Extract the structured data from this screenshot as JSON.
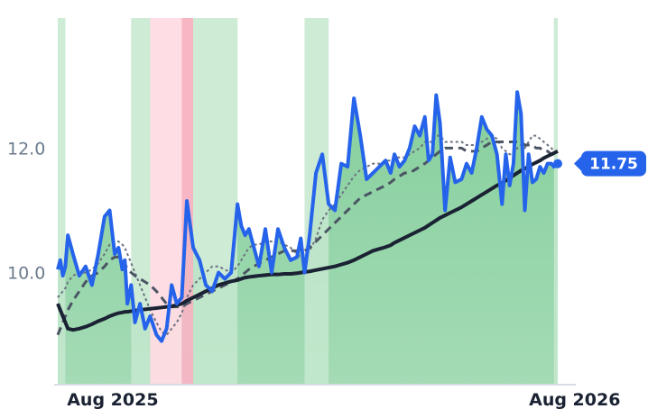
{
  "colors": {
    "price": "#2563eb",
    "ma_long": "#1a2233",
    "ma_mid": "#4b5563",
    "ma_short": "#6b7280",
    "area_up": "#86cf9d",
    "band_up": "#cdebd6",
    "band_down": "#ffdce4",
    "band_down_strong": "#f7b6c4",
    "label_bg": "#2563eb"
  },
  "chart_data": {
    "type": "line",
    "title": "",
    "xlabel": "",
    "ylabel": "",
    "x_range": [
      "2025-07-24",
      "2026-09-02"
    ],
    "ylim": [
      8.2,
      13.8
    ],
    "grid": false,
    "legend": "none",
    "x_ticks": [
      {
        "date": "2025-08-01",
        "label": "Aug 2025"
      },
      {
        "date": "2026-08-01",
        "label": "Aug 2026"
      }
    ],
    "y_ticks": [
      {
        "value": 10.0,
        "label": "10.0"
      },
      {
        "value": 12.0,
        "label": "12.0"
      }
    ],
    "last_value_label": "11.75",
    "x": [
      "2025-07-24",
      "2025-07-26",
      "2025-07-28",
      "2025-07-30",
      "2025-08-01",
      "2025-08-05",
      "2025-08-10",
      "2025-08-15",
      "2025-08-20",
      "2025-08-25",
      "2025-08-30",
      "2025-09-03",
      "2025-09-07",
      "2025-09-10",
      "2025-09-13",
      "2025-09-15",
      "2025-09-17",
      "2025-09-20",
      "2025-09-23",
      "2025-09-27",
      "2025-10-01",
      "2025-10-05",
      "2025-10-10",
      "2025-10-14",
      "2025-10-18",
      "2025-10-22",
      "2025-10-26",
      "2025-10-30",
      "2025-11-03",
      "2025-11-08",
      "2025-11-13",
      "2025-11-18",
      "2025-11-23",
      "2025-11-28",
      "2025-12-03",
      "2025-12-08",
      "2025-12-13",
      "2025-12-16",
      "2025-12-19",
      "2025-12-22",
      "2025-12-26",
      "2025-12-30",
      "2026-01-04",
      "2026-01-09",
      "2026-01-14",
      "2026-01-19",
      "2026-01-24",
      "2026-01-29",
      "2026-02-01",
      "2026-02-04",
      "2026-02-08",
      "2026-02-13",
      "2026-02-18",
      "2026-02-23",
      "2026-02-28",
      "2026-03-05",
      "2026-03-10",
      "2026-03-15",
      "2026-03-20",
      "2026-03-25",
      "2026-03-30",
      "2026-04-04",
      "2026-04-09",
      "2026-04-13",
      "2026-04-16",
      "2026-04-20",
      "2026-04-24",
      "2026-04-28",
      "2026-05-02",
      "2026-05-06",
      "2026-05-10",
      "2026-05-13",
      "2026-05-16",
      "2026-05-19",
      "2026-05-22",
      "2026-05-26",
      "2026-05-30",
      "2026-06-03",
      "2026-06-08",
      "2026-06-12",
      "2026-06-16",
      "2026-06-20",
      "2026-06-24",
      "2026-06-28",
      "2026-07-02",
      "2026-07-06",
      "2026-07-10",
      "2026-07-13",
      "2026-07-16",
      "2026-07-19",
      "2026-07-22",
      "2026-07-25",
      "2026-07-28",
      "2026-07-31",
      "2026-08-03",
      "2026-08-06",
      "2026-08-09",
      "2026-08-12",
      "2026-08-15",
      "2026-08-18",
      "2026-08-20",
      "2026-08-23"
    ],
    "series": [
      {
        "key": "price",
        "values": [
          10.05,
          10.2,
          9.95,
          10.1,
          10.6,
          10.3,
          9.95,
          10.1,
          9.8,
          10.3,
          10.9,
          11.0,
          10.3,
          10.4,
          10.05,
          10.2,
          9.5,
          9.8,
          9.2,
          9.5,
          9.1,
          9.3,
          9.0,
          8.9,
          9.1,
          9.8,
          9.5,
          9.6,
          11.15,
          10.4,
          10.2,
          9.8,
          9.7,
          10.0,
          9.9,
          10.0,
          11.1,
          10.75,
          10.6,
          10.7,
          10.4,
          10.1,
          10.7,
          10.0,
          10.7,
          10.4,
          10.2,
          10.25,
          10.55,
          10.0,
          10.6,
          11.6,
          11.9,
          11.1,
          11.0,
          11.75,
          11.7,
          12.8,
          12.2,
          11.5,
          11.6,
          11.7,
          11.8,
          11.6,
          11.9,
          11.7,
          11.8,
          12.0,
          12.35,
          12.2,
          12.5,
          11.8,
          11.9,
          12.85,
          12.4,
          11.0,
          11.85,
          11.45,
          11.5,
          11.75,
          11.6,
          12.0,
          12.5,
          12.3,
          12.2,
          11.9,
          11.1,
          11.9,
          11.4,
          11.75,
          12.9,
          12.55,
          11.0,
          11.9,
          11.45,
          11.5,
          11.7,
          11.6,
          11.75,
          11.75,
          11.7,
          11.75
        ]
      },
      {
        "key": "ma_short",
        "values": [
          9.6,
          9.65,
          9.7,
          9.75,
          9.85,
          9.95,
          10.0,
          10.0,
          10.05,
          10.15,
          10.3,
          10.45,
          10.5,
          10.5,
          10.45,
          10.4,
          10.3,
          10.15,
          10.0,
          9.8,
          9.6,
          9.4,
          9.2,
          9.05,
          9.0,
          9.1,
          9.2,
          9.35,
          9.6,
          9.8,
          9.9,
          10.0,
          10.1,
          10.1,
          10.05,
          10.0,
          10.1,
          10.2,
          10.3,
          10.4,
          10.45,
          10.45,
          10.5,
          10.5,
          10.5,
          10.45,
          10.4,
          10.3,
          10.25,
          10.3,
          10.35,
          10.55,
          10.85,
          11.0,
          11.1,
          11.25,
          11.4,
          11.55,
          11.65,
          11.7,
          11.75,
          11.75,
          11.8,
          11.8,
          11.85,
          11.85,
          11.85,
          11.9,
          11.95,
          12.0,
          12.1,
          12.1,
          12.1,
          12.2,
          12.2,
          12.1,
          12.1,
          12.1,
          12.1,
          12.05,
          12.05,
          12.05,
          12.1,
          12.15,
          12.2,
          12.15,
          12.0,
          11.95,
          11.9,
          11.9,
          12.0,
          12.05,
          12.0,
          12.1,
          12.2,
          12.2,
          12.15,
          12.1,
          12.05,
          12.0,
          11.95,
          11.9
        ]
      },
      {
        "key": "ma_mid",
        "values": [
          9.0,
          9.1,
          9.2,
          9.3,
          9.4,
          9.55,
          9.7,
          9.85,
          9.95,
          10.0,
          10.1,
          10.2,
          10.25,
          10.25,
          10.2,
          10.15,
          10.05,
          10.0,
          9.95,
          9.9,
          9.85,
          9.8,
          9.7,
          9.6,
          9.5,
          9.45,
          9.45,
          9.45,
          9.5,
          9.55,
          9.6,
          9.65,
          9.7,
          9.75,
          9.8,
          9.85,
          9.9,
          9.95,
          10.0,
          10.05,
          10.1,
          10.15,
          10.2,
          10.25,
          10.3,
          10.35,
          10.35,
          10.35,
          10.35,
          10.35,
          10.4,
          10.5,
          10.6,
          10.7,
          10.8,
          10.9,
          11.0,
          11.1,
          11.2,
          11.25,
          11.3,
          11.35,
          11.4,
          11.45,
          11.5,
          11.55,
          11.6,
          11.6,
          11.65,
          11.7,
          11.75,
          11.8,
          11.85,
          11.9,
          11.95,
          12.0,
          12.0,
          12.0,
          12.0,
          11.95,
          11.95,
          11.95,
          12.0,
          12.05,
          12.1,
          12.1,
          12.1,
          12.1,
          12.1,
          12.1,
          12.1,
          12.1,
          12.05,
          12.05,
          12.05,
          12.0,
          12.0,
          11.95,
          11.95,
          11.9,
          11.9,
          11.9
        ]
      },
      {
        "key": "ma_long",
        "values": [
          9.5,
          9.4,
          9.3,
          9.2,
          9.1,
          9.08,
          9.1,
          9.13,
          9.17,
          9.22,
          9.26,
          9.3,
          9.33,
          9.35,
          9.36,
          9.37,
          9.37,
          9.38,
          9.39,
          9.4,
          9.41,
          9.42,
          9.43,
          9.44,
          9.45,
          9.46,
          9.48,
          9.5,
          9.55,
          9.6,
          9.65,
          9.7,
          9.75,
          9.8,
          9.83,
          9.86,
          9.88,
          9.9,
          9.92,
          9.93,
          9.94,
          9.95,
          9.96,
          9.97,
          9.97,
          9.98,
          9.98,
          9.99,
          10.0,
          10.01,
          10.02,
          10.04,
          10.06,
          10.08,
          10.1,
          10.13,
          10.16,
          10.2,
          10.25,
          10.3,
          10.35,
          10.38,
          10.41,
          10.44,
          10.48,
          10.52,
          10.56,
          10.6,
          10.64,
          10.68,
          10.72,
          10.76,
          10.8,
          10.84,
          10.88,
          10.92,
          10.96,
          11.0,
          11.05,
          11.1,
          11.15,
          11.2,
          11.25,
          11.3,
          11.35,
          11.4,
          11.44,
          11.48,
          11.52,
          11.56,
          11.6,
          11.64,
          11.67,
          11.7,
          11.74,
          11.77,
          11.8,
          11.84,
          11.87,
          11.9,
          11.92,
          11.95
        ]
      }
    ],
    "bands": [
      {
        "from": "2025-07-24",
        "to": "2025-07-30",
        "state": "up"
      },
      {
        "from": "2025-09-20",
        "to": "2025-10-05",
        "state": "up"
      },
      {
        "from": "2025-10-05",
        "to": "2025-10-30",
        "state": "down"
      },
      {
        "from": "2025-10-30",
        "to": "2025-11-08",
        "state": "down_strong"
      },
      {
        "from": "2025-11-08",
        "to": "2025-12-13",
        "state": "up"
      },
      {
        "from": "2026-02-04",
        "to": "2026-02-23",
        "state": "up"
      },
      {
        "from": "2026-08-20",
        "to": "2026-08-23",
        "state": "up"
      }
    ]
  }
}
